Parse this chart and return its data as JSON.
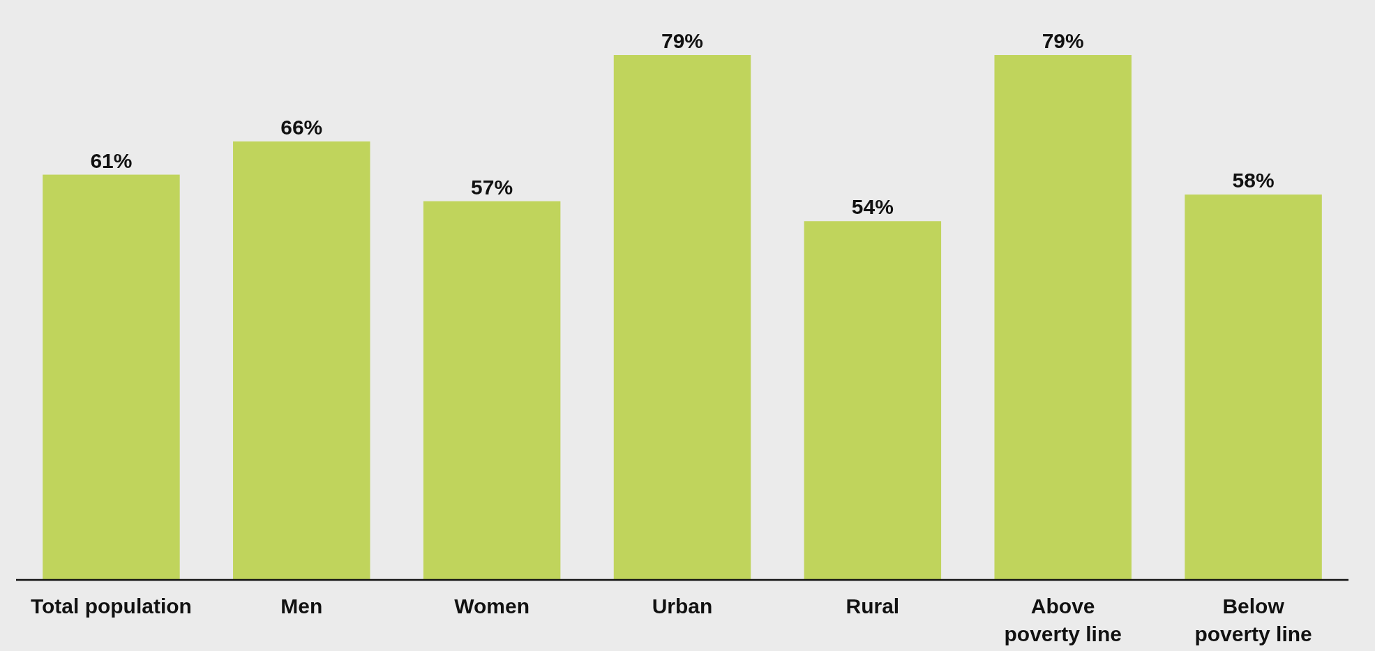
{
  "chart_data": {
    "type": "bar",
    "categories": [
      "Total population",
      "Men",
      "Women",
      "Urban",
      "Rural",
      "Above poverty line",
      "Below poverty line"
    ],
    "values": [
      61,
      66,
      57,
      79,
      54,
      79,
      58
    ],
    "value_labels": [
      "61%",
      "66%",
      "57%",
      "79%",
      "54%",
      "79%",
      "58%"
    ],
    "color": "#c0d45c"
  }
}
